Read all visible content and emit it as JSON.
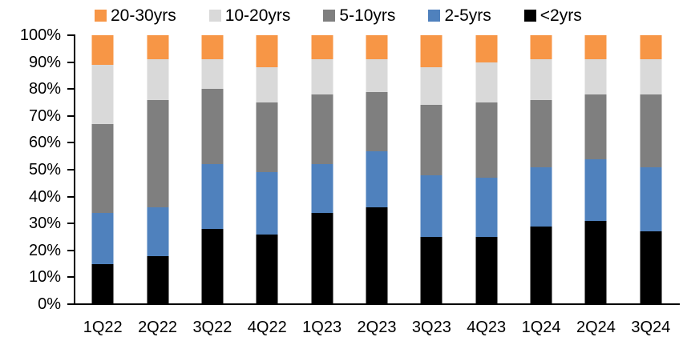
{
  "chart_data": {
    "type": "bar",
    "stacked": true,
    "percent_stacked": true,
    "title": "",
    "xlabel": "",
    "ylabel": "",
    "ylim": [
      0,
      100
    ],
    "grid": false,
    "legend_position": "top",
    "categories": [
      "1Q22",
      "2Q22",
      "3Q22",
      "4Q22",
      "1Q23",
      "2Q23",
      "3Q23",
      "4Q23",
      "1Q24",
      "2Q24",
      "3Q24"
    ],
    "series": [
      {
        "name": "<2yrs",
        "color": "#000000",
        "values": [
          15,
          18,
          28,
          26,
          34,
          36,
          25,
          25,
          29,
          31,
          27
        ]
      },
      {
        "name": "2-5yrs",
        "color": "#4F81BD",
        "values": [
          19,
          18,
          24,
          23,
          18,
          21,
          23,
          22,
          22,
          23,
          24
        ]
      },
      {
        "name": "5-10yrs",
        "color": "#7F7F7F",
        "values": [
          33,
          40,
          28,
          26,
          26,
          22,
          26,
          28,
          25,
          24,
          27
        ]
      },
      {
        "name": "10-20yrs",
        "color": "#D9D9D9",
        "values": [
          22,
          15,
          11,
          13,
          13,
          12,
          14,
          15,
          15,
          13,
          13
        ]
      },
      {
        "name": "20-30yrs",
        "color": "#F79646",
        "values": [
          11,
          9,
          9,
          12,
          9,
          9,
          12,
          10,
          9,
          9,
          9
        ]
      }
    ],
    "legend_order": [
      "20-30yrs",
      "10-20yrs",
      "5-10yrs",
      "2-5yrs",
      "<2yrs"
    ],
    "y_ticks": [
      "100%",
      "90%",
      "80%",
      "70%",
      "60%",
      "50%",
      "40%",
      "30%",
      "20%",
      "10%",
      "0%"
    ],
    "colors": {
      "orange": "#F79646",
      "light_gray": "#D9D9D9",
      "dark_gray": "#7F7F7F",
      "blue": "#4F81BD",
      "black": "#000000",
      "axis": "#000000",
      "background": "#FFFFFF"
    }
  }
}
